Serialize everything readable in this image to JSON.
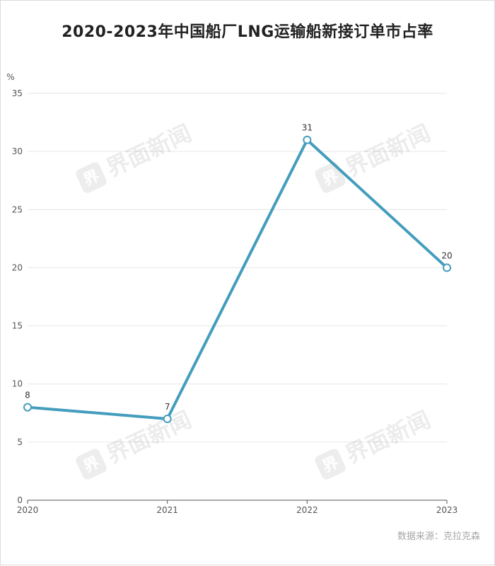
{
  "chart_data": {
    "type": "line",
    "title": "2020-2023年中国船厂LNG运输船新接订单市占率",
    "ylabel": "%",
    "xlabel": "",
    "categories": [
      "2020",
      "2021",
      "2022",
      "2023"
    ],
    "series": [
      {
        "values": [
          8,
          7,
          31,
          20
        ]
      }
    ],
    "data_labels": [
      "8",
      "7",
      "31",
      "20"
    ],
    "ylim": [
      0,
      35
    ],
    "yticks": [
      0,
      5,
      10,
      15,
      20,
      25,
      30,
      35
    ],
    "grid": true,
    "legend": "none",
    "line_color": "#449dbd",
    "source": "数据来源：克拉克森"
  },
  "watermark": "界面新闻",
  "watermark_logo": "界"
}
